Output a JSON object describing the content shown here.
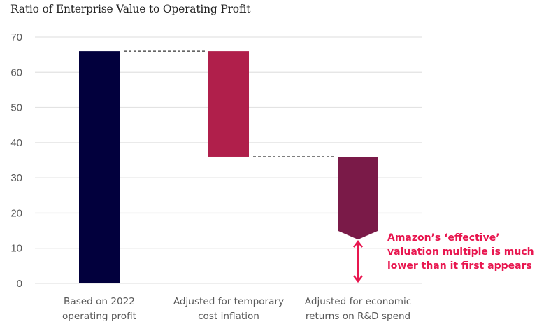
{
  "chart_data": {
    "type": "waterfall",
    "title": "Ratio of Enterprise Value to Operating Profit",
    "xlabel": "",
    "ylabel": "",
    "ylim": [
      0,
      70
    ],
    "yticks": [
      0,
      10,
      20,
      30,
      40,
      50,
      60,
      70
    ],
    "grid": true,
    "categories": [
      [
        "Based on 2022",
        "operating profit"
      ],
      [
        "Adjusted for temporary",
        "cost inflation"
      ],
      [
        "Adjusted for economic",
        "returns on R&D spend"
      ]
    ],
    "bars": [
      {
        "name": "Based on 2022 operating profit",
        "start": 0,
        "end": 66,
        "color": "#02003d",
        "shape": "rect"
      },
      {
        "name": "Adjusted for temporary cost inflation",
        "start": 66,
        "end": 36,
        "color": "#b01f4b",
        "shape": "rect"
      },
      {
        "name": "Adjusted for economic returns on R&D spend",
        "start": 36,
        "end": 15,
        "tip": 12.5,
        "color": "#7a1a48",
        "shape": "chevron-down"
      }
    ],
    "connectors": [
      {
        "from_bar": 0,
        "to_bar": 1,
        "value": 66
      },
      {
        "from_bar": 1,
        "to_bar": 2,
        "value": 36
      }
    ],
    "annotation": {
      "lines": [
        "Amazon’s ‘effective’",
        "valuation multiple is much",
        "lower than it first appears"
      ],
      "color": "#e8164f",
      "arrow_from": 12.5,
      "arrow_to": 0
    }
  }
}
